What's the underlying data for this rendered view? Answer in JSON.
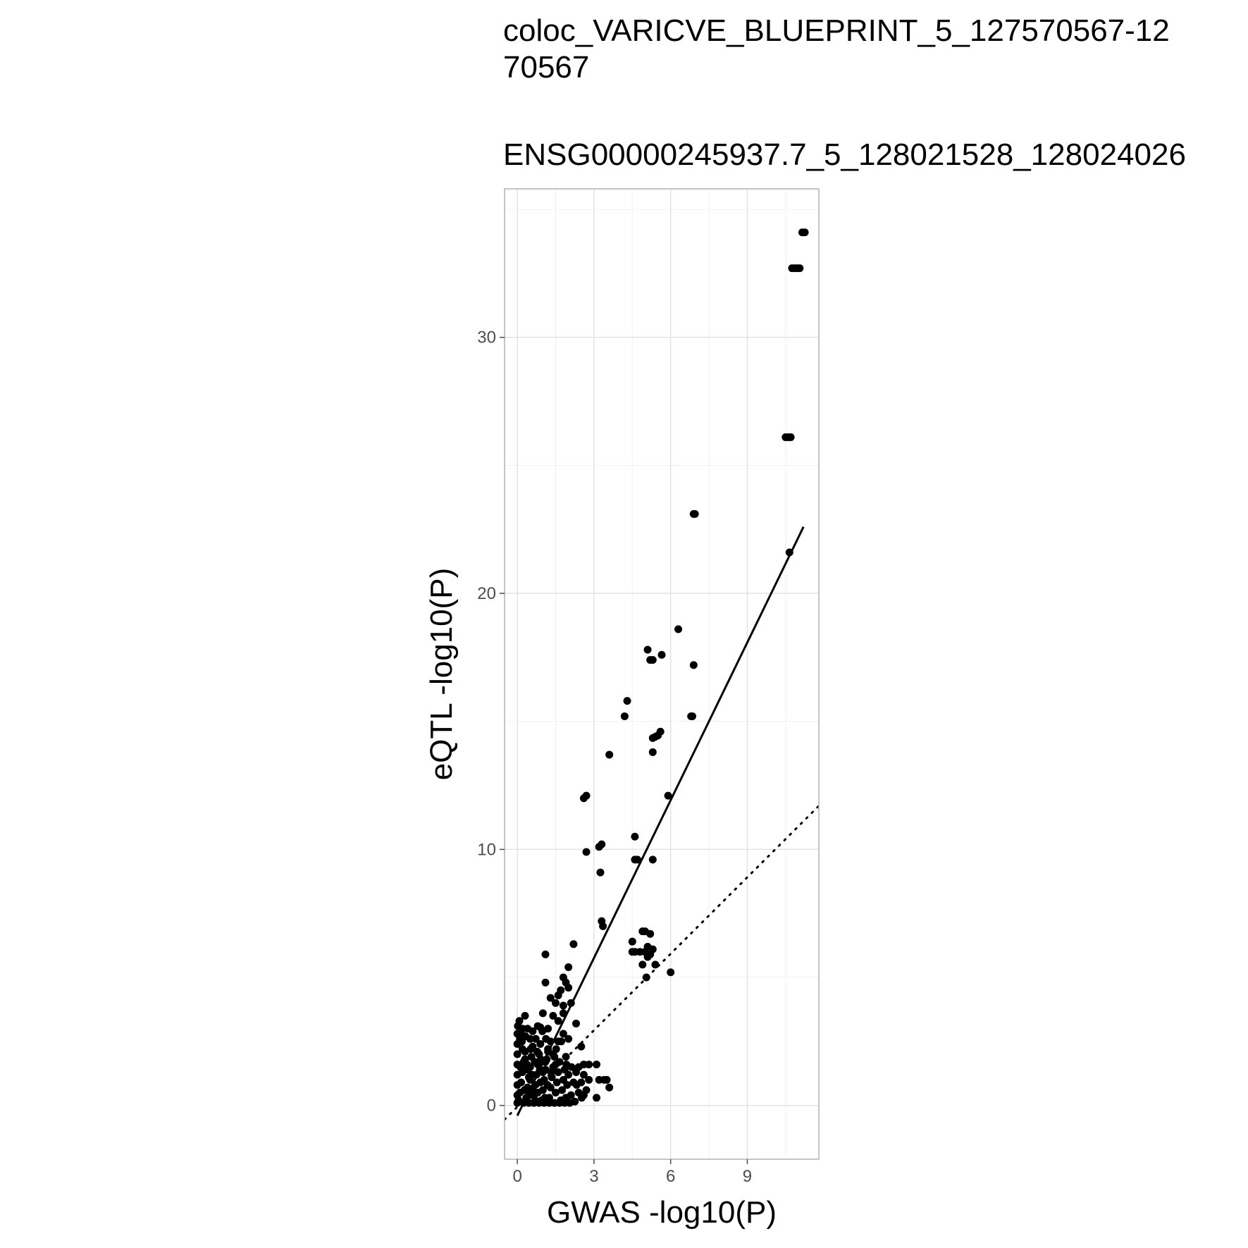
{
  "chart_data": {
    "type": "scatter",
    "title": "coloc_VARICVE_BLUEPRINT_5_127570567-12\n70567",
    "subtitle": "ENSG00000245937.7_5_128021528_128024026",
    "xlabel": "GWAS -log10(P)",
    "ylabel": "eQTL -log10(P)",
    "xlim": [
      -0.5,
      11.8
    ],
    "ylim": [
      -2.1,
      35.8
    ],
    "x_ticks": [
      0,
      3,
      6,
      9
    ],
    "y_ticks": [
      0,
      10,
      20,
      30
    ],
    "grid": true,
    "point_color": "#000000",
    "fit_line": {
      "style": "solid",
      "x": [
        0,
        11.2
      ],
      "y": [
        -0.4,
        22.6
      ]
    },
    "reference_line": {
      "style": "dotted",
      "x": [
        -0.5,
        11.8
      ],
      "y": [
        -0.55,
        11.7
      ]
    },
    "points": [
      [
        11.15,
        34.1
      ],
      [
        11.25,
        34.1
      ],
      [
        10.75,
        32.7
      ],
      [
        10.85,
        32.7
      ],
      [
        10.95,
        32.7
      ],
      [
        11.05,
        32.7
      ],
      [
        10.5,
        26.1
      ],
      [
        10.6,
        26.1
      ],
      [
        10.7,
        26.1
      ],
      [
        10.65,
        21.6
      ],
      [
        6.9,
        23.1
      ],
      [
        6.95,
        23.1
      ],
      [
        6.3,
        18.6
      ],
      [
        5.1,
        17.8
      ],
      [
        5.65,
        17.6
      ],
      [
        5.2,
        17.4
      ],
      [
        5.3,
        17.4
      ],
      [
        6.9,
        17.2
      ],
      [
        4.3,
        15.8
      ],
      [
        4.2,
        15.2
      ],
      [
        6.8,
        15.2
      ],
      [
        6.85,
        15.2
      ],
      [
        5.4,
        14.4
      ],
      [
        5.5,
        14.45
      ],
      [
        5.3,
        14.35
      ],
      [
        5.6,
        14.6
      ],
      [
        5.3,
        13.8
      ],
      [
        3.6,
        13.7
      ],
      [
        2.6,
        12.0
      ],
      [
        2.7,
        12.1
      ],
      [
        5.9,
        12.1
      ],
      [
        3.2,
        10.1
      ],
      [
        3.3,
        10.2
      ],
      [
        4.6,
        10.5
      ],
      [
        2.7,
        9.9
      ],
      [
        4.6,
        9.6
      ],
      [
        4.7,
        9.6
      ],
      [
        5.3,
        9.6
      ],
      [
        3.25,
        9.1
      ],
      [
        3.3,
        7.2
      ],
      [
        3.35,
        7.0
      ],
      [
        4.9,
        6.8
      ],
      [
        5.0,
        6.8
      ],
      [
        5.2,
        6.7
      ],
      [
        4.5,
        6.4
      ],
      [
        5.1,
        6.2
      ],
      [
        5.3,
        6.1
      ],
      [
        4.6,
        6.0
      ],
      [
        4.8,
        6.0
      ],
      [
        5.0,
        6.0
      ],
      [
        4.5,
        6.0
      ],
      [
        5.2,
        5.9
      ],
      [
        5.1,
        5.8
      ],
      [
        4.9,
        5.5
      ],
      [
        5.4,
        5.5
      ],
      [
        6.0,
        5.2
      ],
      [
        5.05,
        5.0
      ],
      [
        1.1,
        5.9
      ],
      [
        2.2,
        6.3
      ],
      [
        2.0,
        5.4
      ],
      [
        1.8,
        5.0
      ],
      [
        1.1,
        4.8
      ],
      [
        1.9,
        4.8
      ],
      [
        2.0,
        4.6
      ],
      [
        1.7,
        4.5
      ],
      [
        1.6,
        4.3
      ],
      [
        1.3,
        4.2
      ],
      [
        1.5,
        4.0
      ],
      [
        2.1,
        4.0
      ],
      [
        1.8,
        3.9
      ],
      [
        1.0,
        3.6
      ],
      [
        1.8,
        3.6
      ],
      [
        0.3,
        3.5
      ],
      [
        1.4,
        3.5
      ],
      [
        1.6,
        3.3
      ],
      [
        0.8,
        3.1
      ],
      [
        0.9,
        3.05
      ],
      [
        1.2,
        3.0
      ],
      [
        0.4,
        3.0
      ],
      [
        0.2,
        3.0
      ],
      [
        0.6,
        2.9
      ],
      [
        2.3,
        3.2
      ],
      [
        1.8,
        2.8
      ],
      [
        2.0,
        2.6
      ],
      [
        1.6,
        2.5
      ],
      [
        0.15,
        2.8
      ],
      [
        0.5,
        2.6
      ],
      [
        2.5,
        2.3
      ],
      [
        1.9,
        1.9
      ],
      [
        2.6,
        1.6
      ],
      [
        2.8,
        1.6
      ],
      [
        3.1,
        1.6
      ],
      [
        2.4,
        1.5
      ],
      [
        3.2,
        1.0
      ],
      [
        3.4,
        1.0
      ],
      [
        3.5,
        1.0
      ],
      [
        3.6,
        0.7
      ],
      [
        3.1,
        0.3
      ],
      [
        2.6,
        0.4
      ],
      [
        0.05,
        0.2
      ],
      [
        0.1,
        0.5
      ],
      [
        0.15,
        0.9
      ],
      [
        0.2,
        1.3
      ],
      [
        0.25,
        1.7
      ],
      [
        0.3,
        2.1
      ],
      [
        0.35,
        0.3
      ],
      [
        0.4,
        0.7
      ],
      [
        0.45,
        1.1
      ],
      [
        0.5,
        1.5
      ],
      [
        0.55,
        1.9
      ],
      [
        0.6,
        2.3
      ],
      [
        0.65,
        0.4
      ],
      [
        0.7,
        0.8
      ],
      [
        0.75,
        1.2
      ],
      [
        0.8,
        1.6
      ],
      [
        0.85,
        2.0
      ],
      [
        0.9,
        2.4
      ],
      [
        0.95,
        0.2
      ],
      [
        1.0,
        0.6
      ],
      [
        1.05,
        1.0
      ],
      [
        1.1,
        1.4
      ],
      [
        1.15,
        1.8
      ],
      [
        1.2,
        2.2
      ],
      [
        1.25,
        0.3
      ],
      [
        1.3,
        0.7
      ],
      [
        1.35,
        1.1
      ],
      [
        1.4,
        1.5
      ],
      [
        1.45,
        1.9
      ],
      [
        1.5,
        0.5
      ],
      [
        1.55,
        0.9
      ],
      [
        1.6,
        1.3
      ],
      [
        1.65,
        1.7
      ],
      [
        1.7,
        0.2
      ],
      [
        1.75,
        0.6
      ],
      [
        1.8,
        1.0
      ],
      [
        1.85,
        1.4
      ],
      [
        1.9,
        0.3
      ],
      [
        1.95,
        0.8
      ],
      [
        2.0,
        1.2
      ],
      [
        2.1,
        0.4
      ],
      [
        2.2,
        0.9
      ],
      [
        2.3,
        1.3
      ],
      [
        2.4,
        0.5
      ],
      [
        2.5,
        0.9
      ],
      [
        2.6,
        1.2
      ],
      [
        2.7,
        0.6
      ],
      [
        2.8,
        1.0
      ],
      [
        0.0,
        0.1
      ],
      [
        0.0,
        0.4
      ],
      [
        0.0,
        0.8
      ],
      [
        0.0,
        1.2
      ],
      [
        0.0,
        1.6
      ],
      [
        0.0,
        2.0
      ],
      [
        0.0,
        2.4
      ],
      [
        0.0,
        2.8
      ],
      [
        0.02,
        3.1
      ],
      [
        0.1,
        2.6
      ],
      [
        0.2,
        2.2
      ],
      [
        0.3,
        1.8
      ],
      [
        0.4,
        1.4
      ],
      [
        0.5,
        1.0
      ],
      [
        0.6,
        0.6
      ],
      [
        0.7,
        0.2
      ],
      [
        0.8,
        0.5
      ],
      [
        0.9,
        0.9
      ],
      [
        1.0,
        1.3
      ],
      [
        1.1,
        1.7
      ],
      [
        1.2,
        2.1
      ],
      [
        1.3,
        2.5
      ],
      [
        1.4,
        2.0
      ],
      [
        1.5,
        1.6
      ],
      [
        0.25,
        0.1
      ],
      [
        0.45,
        0.1
      ],
      [
        0.65,
        0.1
      ],
      [
        0.85,
        0.1
      ],
      [
        1.05,
        0.1
      ],
      [
        1.25,
        0.1
      ],
      [
        1.45,
        0.1
      ],
      [
        1.65,
        0.1
      ],
      [
        1.85,
        0.1
      ],
      [
        2.05,
        0.1
      ],
      [
        2.25,
        0.15
      ],
      [
        0.12,
        1.5
      ],
      [
        0.32,
        2.7
      ],
      [
        0.52,
        2.2
      ],
      [
        0.72,
        2.6
      ],
      [
        0.92,
        1.8
      ],
      [
        1.12,
        2.6
      ],
      [
        1.32,
        1.3
      ],
      [
        1.52,
        2.2
      ],
      [
        1.72,
        2.5
      ],
      [
        1.92,
        1.6
      ],
      [
        2.12,
        1.5
      ],
      [
        2.32,
        0.8
      ],
      [
        2.52,
        0.3
      ],
      [
        0.08,
        3.3
      ],
      [
        0.18,
        2.5
      ],
      [
        0.28,
        0.6
      ],
      [
        0.38,
        1.6
      ],
      [
        0.48,
        0.4
      ],
      [
        0.58,
        1.2
      ],
      [
        0.68,
        1.7
      ],
      [
        0.78,
        2.1
      ],
      [
        0.88,
        1.4
      ],
      [
        0.98,
        2.9
      ],
      [
        1.08,
        0.3
      ],
      [
        1.18,
        0.8
      ]
    ]
  }
}
